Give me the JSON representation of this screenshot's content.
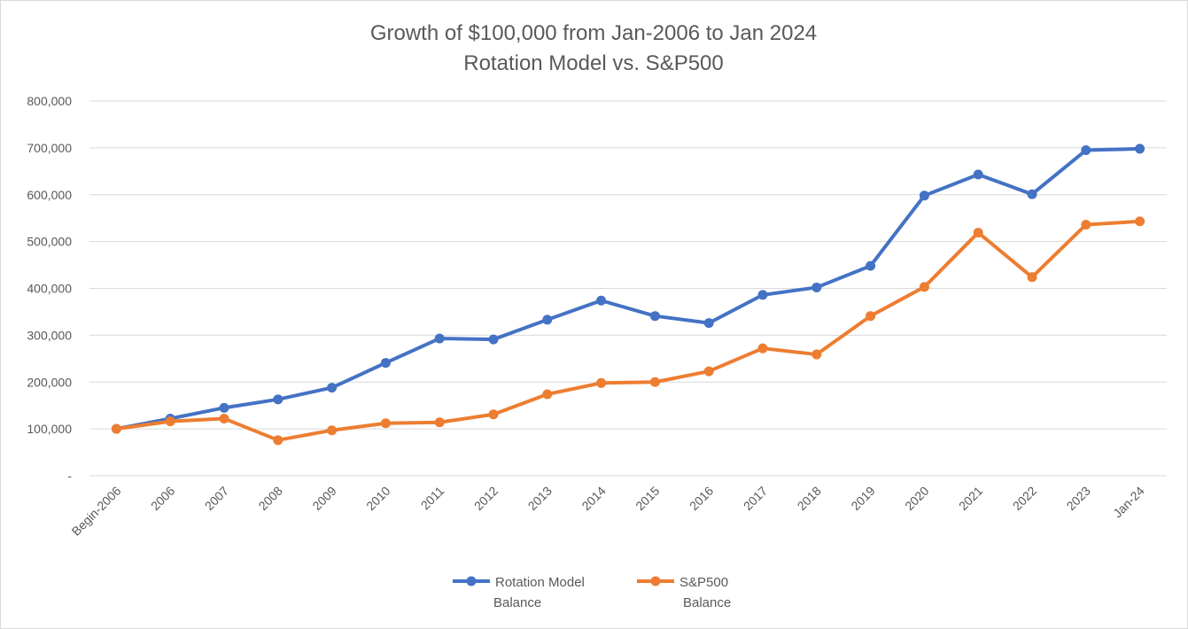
{
  "chart_data": {
    "type": "line",
    "title": "Growth of $100,000 from Jan-2006 to Jan 2024",
    "subtitle": "Rotation Model vs. S&P500",
    "categories": [
      "Begin-2006",
      "2006",
      "2007",
      "2008",
      "2009",
      "2010",
      "2011",
      "2012",
      "2013",
      "2014",
      "2015",
      "2016",
      "2017",
      "2018",
      "2019",
      "2020",
      "2021",
      "2022",
      "2023",
      "Jan-24"
    ],
    "ylim": [
      0,
      800000
    ],
    "yticks": [
      {
        "value": 0,
        "label": "-"
      },
      {
        "value": 100000,
        "label": "100,000"
      },
      {
        "value": 200000,
        "label": "200,000"
      },
      {
        "value": 300000,
        "label": "300,000"
      },
      {
        "value": 400000,
        "label": "400,000"
      },
      {
        "value": 500000,
        "label": "500,000"
      },
      {
        "value": 600000,
        "label": "600,000"
      },
      {
        "value": 700000,
        "label": "700,000"
      },
      {
        "value": 800000,
        "label": "800,000"
      }
    ],
    "grid": true,
    "legend_position": "bottom",
    "series": [
      {
        "name": "Rotation Model Balance",
        "legend_lines": [
          "Rotation Model",
          "Balance"
        ],
        "color": "#4472c4",
        "values": [
          100000,
          122000,
          145000,
          163000,
          188000,
          241000,
          293000,
          291000,
          333000,
          374000,
          341000,
          326000,
          386000,
          402000,
          448000,
          598000,
          643000,
          601000,
          695000,
          698000
        ]
      },
      {
        "name": "S&P500 Balance",
        "legend_lines": [
          "S&P500",
          "Balance"
        ],
        "color": "#ed7d31",
        "values": [
          100000,
          116000,
          122000,
          76000,
          97000,
          112000,
          114000,
          131000,
          174000,
          198000,
          200000,
          223000,
          272000,
          259000,
          341000,
          403000,
          519000,
          424000,
          536000,
          543000
        ]
      }
    ]
  }
}
